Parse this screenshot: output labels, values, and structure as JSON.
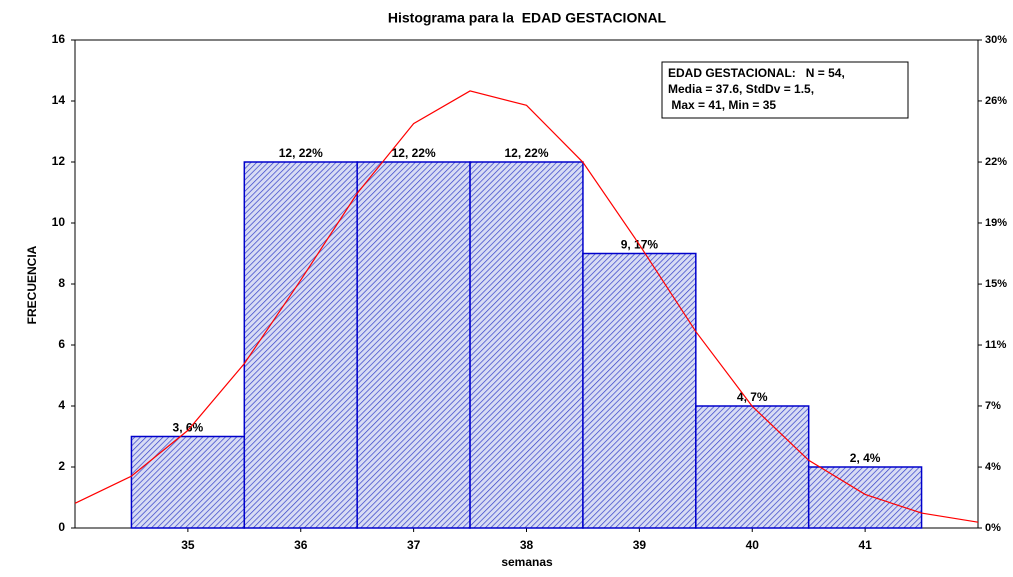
{
  "chart_data": {
    "type": "histogram",
    "title": "Histograma para la  EDAD GESTACIONAL",
    "xlabel": "semanas",
    "ylabel": "FRECUENCIA",
    "bins": [
      34.5,
      35.5,
      36.5,
      37.5,
      38.5,
      39.5,
      40.5,
      41.5
    ],
    "values": [
      3,
      12,
      12,
      12,
      9,
      4,
      2
    ],
    "value_labels": [
      "3, 6%",
      "12, 22%",
      "12, 22%",
      "12, 22%",
      "9, 17%",
      "4, 7%",
      "2, 4%"
    ],
    "color": "#0000cc",
    "xlim": [
      34,
      42
    ],
    "xticks": [
      35,
      36,
      37,
      38,
      39,
      40,
      41
    ],
    "ylim": [
      0,
      16
    ],
    "yticks": [
      0,
      2,
      4,
      6,
      8,
      10,
      12,
      14,
      16
    ],
    "y2lim": [
      0,
      29.63
    ],
    "y2ticks": [
      {
        "value": 0,
        "label": "0%"
      },
      {
        "value": 3.7,
        "label": "4%"
      },
      {
        "value": 7.41,
        "label": "7%"
      },
      {
        "value": 11.11,
        "label": "11%"
      },
      {
        "value": 14.81,
        "label": "15%"
      },
      {
        "value": 18.52,
        "label": "19%"
      },
      {
        "value": 22.22,
        "label": "22%"
      },
      {
        "value": 25.93,
        "label": "26%"
      },
      {
        "value": 29.63,
        "label": "30%"
      }
    ],
    "fit_curve": {
      "color": "#ff0000",
      "x": [
        34,
        34.5,
        35,
        35.5,
        36,
        36.5,
        37,
        37.5,
        38,
        38.5,
        39,
        39.5,
        40,
        40.5,
        41,
        41.5,
        42
      ],
      "values": [
        0.81,
        1.7,
        3.2,
        5.39,
        8.13,
        10.97,
        13.26,
        14.33,
        13.86,
        11.99,
        9.29,
        6.44,
        3.99,
        2.22,
        1.1,
        0.49,
        0.19
      ]
    },
    "annotation": [
      "EDAD GESTACIONAL:   N = 54,",
      "Media = 37.6, StdDv = 1.5,",
      " Max = 41, Min = 35"
    ]
  }
}
